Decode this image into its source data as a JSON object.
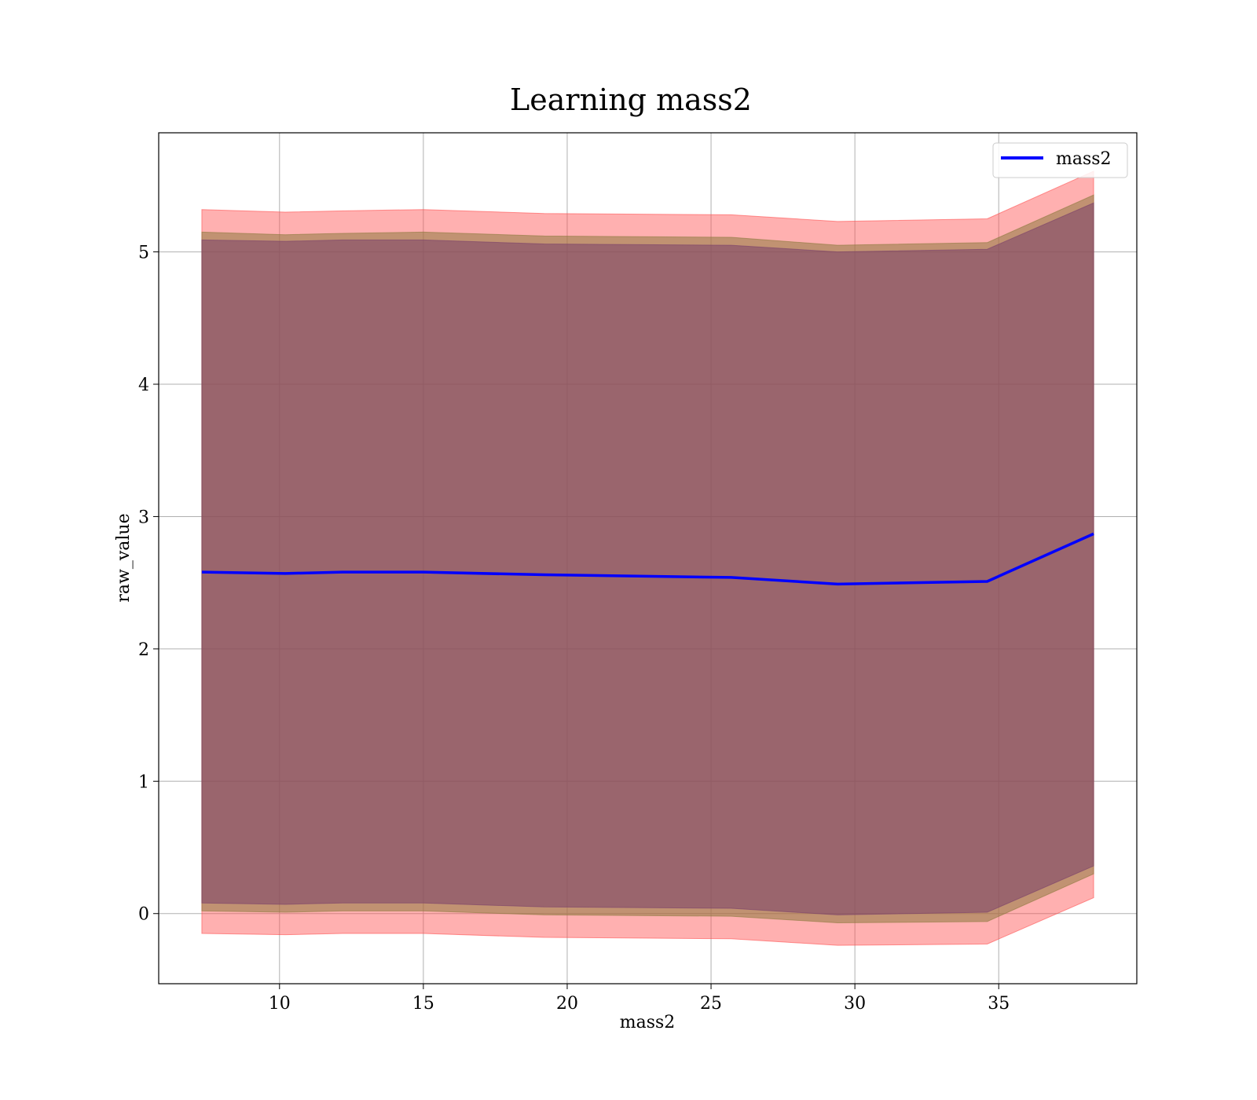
{
  "chart_data": {
    "type": "line",
    "title": "Learning mass2",
    "xlabel": "mass2",
    "ylabel": "raw_value",
    "xlim": [
      5.8,
      39.8
    ],
    "ylim": [
      -0.53,
      5.9
    ],
    "xticks": [
      10,
      15,
      20,
      25,
      30,
      35
    ],
    "yticks": [
      0,
      1,
      2,
      3,
      4,
      5
    ],
    "grid": true,
    "legend": {
      "position": "top-right",
      "entries": [
        "mass2"
      ]
    },
    "x": [
      7.3,
      10.2,
      12.2,
      15.0,
      19.2,
      25.7,
      29.4,
      34.6,
      38.3
    ],
    "series": [
      {
        "name": "mass2",
        "color": "#0000ff",
        "values": [
          2.58,
          2.57,
          2.58,
          2.58,
          2.56,
          2.54,
          2.49,
          2.51,
          2.87
        ]
      }
    ],
    "bands": [
      {
        "color": "#ff4f4f",
        "opacity": 0.45,
        "upper": [
          5.32,
          5.3,
          5.31,
          5.32,
          5.29,
          5.28,
          5.23,
          5.25,
          5.61
        ],
        "lower": [
          -0.15,
          -0.16,
          -0.15,
          -0.15,
          -0.18,
          -0.19,
          -0.24,
          -0.23,
          0.12
        ]
      },
      {
        "color": "#8e7a3f",
        "opacity": 0.55,
        "upper": [
          5.15,
          5.13,
          5.14,
          5.15,
          5.12,
          5.11,
          5.05,
          5.07,
          5.43
        ],
        "lower": [
          0.02,
          0.01,
          0.02,
          0.02,
          -0.01,
          -0.02,
          -0.07,
          -0.06,
          0.3
        ]
      },
      {
        "color": "#7a3f6a",
        "opacity": 0.55,
        "upper": [
          5.09,
          5.08,
          5.09,
          5.09,
          5.06,
          5.05,
          5.0,
          5.02,
          5.37
        ],
        "lower": [
          0.08,
          0.07,
          0.08,
          0.08,
          0.05,
          0.04,
          -0.01,
          0.01,
          0.36
        ]
      }
    ]
  }
}
